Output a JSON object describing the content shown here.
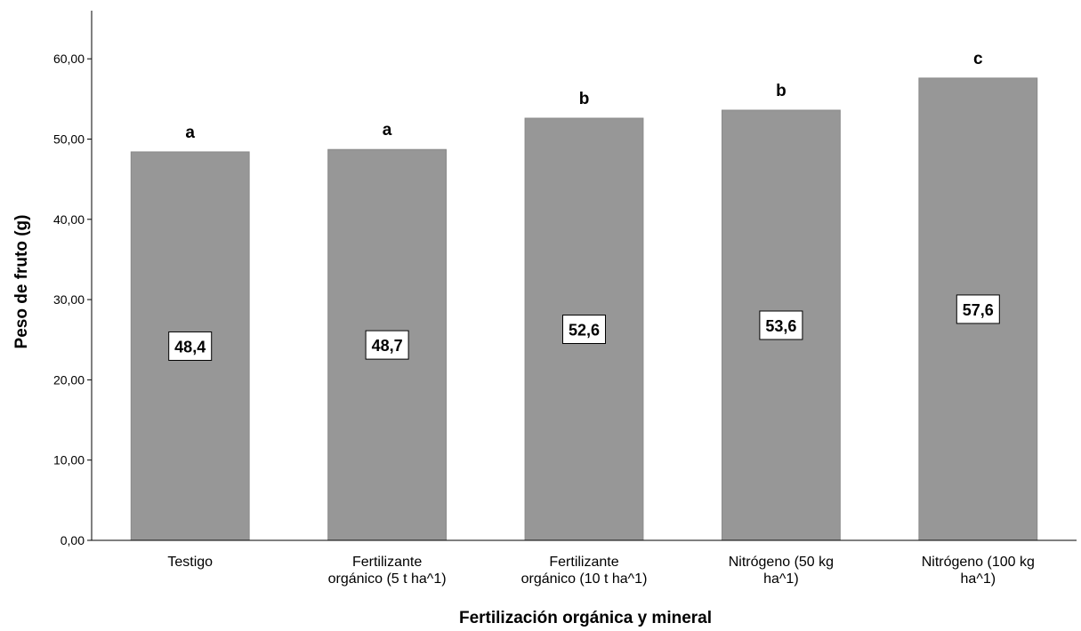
{
  "chart_data": {
    "type": "bar",
    "title": "",
    "xlabel": "Fertilización orgánica y mineral",
    "ylabel": "Peso de fruto (g)",
    "ylim": [
      0,
      66
    ],
    "yticks": [
      0,
      10,
      20,
      30,
      40,
      50,
      60
    ],
    "ytick_labels": [
      "0,00",
      "10,00",
      "20,00",
      "30,00",
      "40,00",
      "50,00",
      "60,00"
    ],
    "categories": [
      [
        "Testigo"
      ],
      [
        "Fertilizante",
        "orgánico (5 t ha^1)"
      ],
      [
        "Fertilizante",
        "orgánico (10 t ha^1)"
      ],
      [
        "Nitrógeno (50 kg",
        "ha^1)"
      ],
      [
        "Nitrógeno (100 kg",
        "ha^1)"
      ]
    ],
    "values": [
      48.4,
      48.7,
      52.6,
      53.6,
      57.6
    ],
    "value_labels": [
      "48,4",
      "48,7",
      "52,6",
      "53,6",
      "57,6"
    ],
    "significance_letters": [
      "a",
      "a",
      "b",
      "b",
      "c"
    ],
    "bar_color": "#979797",
    "grid": false,
    "legend": "none"
  }
}
